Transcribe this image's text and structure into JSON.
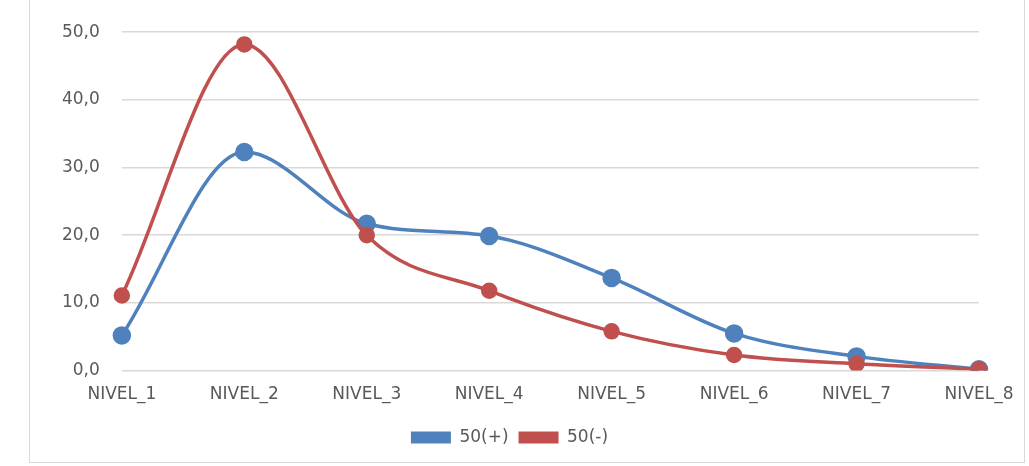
{
  "chart_data": {
    "type": "line",
    "categories": [
      "NIVEL_1",
      "NIVEL_2",
      "NIVEL_3",
      "NIVEL_4",
      "NIVEL_5",
      "NIVEL_6",
      "NIVEL_7",
      "NIVEL_8"
    ],
    "series": [
      {
        "name": "50(+)",
        "color": "#4f81bd",
        "values": [
          5.2,
          32.3,
          21.7,
          19.9,
          13.7,
          5.5,
          2.1,
          0.2
        ]
      },
      {
        "name": "50(-)",
        "color": "#c0504d",
        "values": [
          11.1,
          48.2,
          20.0,
          11.8,
          5.8,
          2.3,
          1.0,
          0.2
        ]
      }
    ],
    "ylim": [
      0,
      50
    ],
    "yticks": [
      {
        "value": 0,
        "label": "0,0"
      },
      {
        "value": 10,
        "label": "10,0"
      },
      {
        "value": 20,
        "label": "20,0"
      },
      {
        "value": 30,
        "label": "30,0"
      },
      {
        "value": 40,
        "label": "40,0"
      },
      {
        "value": 50,
        "label": "50,0"
      }
    ],
    "grid": "y",
    "legend": "bottom",
    "marker": "circle",
    "line_style": "solid"
  }
}
